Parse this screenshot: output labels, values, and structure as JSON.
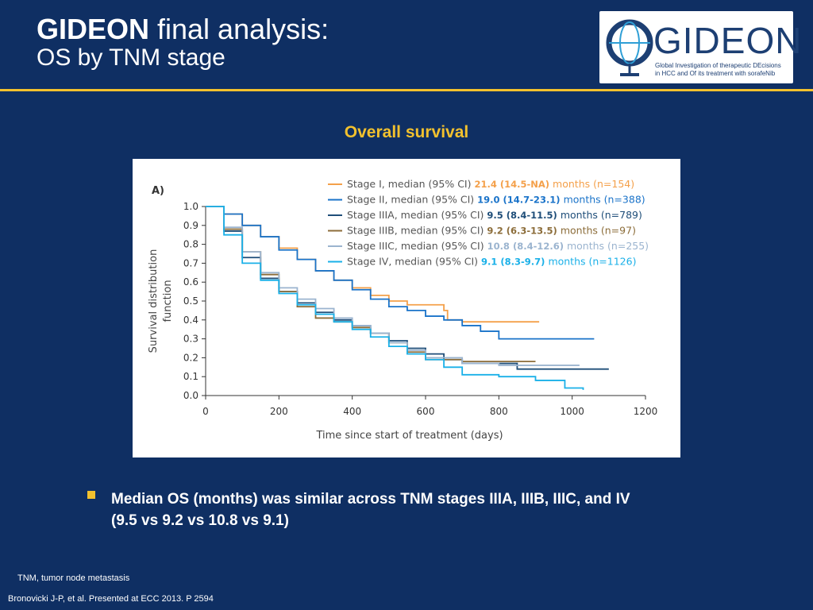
{
  "header": {
    "title_bold": "GIDEON",
    "title_rest": " final analysis:",
    "subtitle": "OS by TNM stage"
  },
  "logo": {
    "icon": "globe-icon",
    "word": "GIDEON",
    "tagline_line1": "Global Investigation of therapeutic DEcisions",
    "tagline_line2": "in HCC and Of its treatment with sorafeNib"
  },
  "section_title": "Overall survival",
  "bullet": {
    "icon": "square-bullet-icon",
    "line1": "Median OS (months) was similar across TNM stages IIIA, IIIB, IIIC, and IV",
    "line2": "(9.5 vs 9.2 vs 10.8 vs 9.1)"
  },
  "footnote": "TNM, tumor node metastasis",
  "citation": "Bronovicki J-P, et al. Presented at ECC 2013. P 2594",
  "colors": {
    "background": "#0f2f63",
    "accent": "#f2c12e"
  },
  "chart_data": {
    "type": "line",
    "panel_label": "A)",
    "xlabel": "Time since start of treatment (days)",
    "ylabel_line1": "Survival distribution",
    "ylabel_line2": "function",
    "xlim": [
      0,
      1200
    ],
    "ylim": [
      0,
      1.0
    ],
    "xticks": [
      "0",
      "200",
      "400",
      "600",
      "800",
      "1000",
      "1200"
    ],
    "yticks": [
      "0.0",
      "0.1",
      "0.2",
      "0.3",
      "0.4",
      "0.5",
      "0.6",
      "0.7",
      "0.8",
      "0.9",
      "1.0"
    ],
    "legend_position": "top-right",
    "series": [
      {
        "name": "Stage I",
        "legend_prefix": "Stage I, median (95% CI)",
        "median": "21.4 (14.5-NA)",
        "months_label": "months",
        "n": "154",
        "color": "#f4a04a",
        "points": [
          [
            0,
            1.0
          ],
          [
            50,
            0.96
          ],
          [
            100,
            0.9
          ],
          [
            150,
            0.84
          ],
          [
            200,
            0.78
          ],
          [
            250,
            0.72
          ],
          [
            300,
            0.66
          ],
          [
            350,
            0.61
          ],
          [
            400,
            0.57
          ],
          [
            450,
            0.53
          ],
          [
            500,
            0.5
          ],
          [
            550,
            0.48
          ],
          [
            600,
            0.48
          ],
          [
            650,
            0.45
          ],
          [
            660,
            0.4
          ],
          [
            700,
            0.39
          ],
          [
            800,
            0.39
          ],
          [
            910,
            0.39
          ]
        ]
      },
      {
        "name": "Stage II",
        "legend_prefix": "Stage II, median (95% CI)",
        "median": "19.0 (14.7-23.1)",
        "months_label": "months",
        "n": "388",
        "color": "#1a73c9",
        "points": [
          [
            0,
            1.0
          ],
          [
            50,
            0.96
          ],
          [
            100,
            0.9
          ],
          [
            150,
            0.84
          ],
          [
            200,
            0.77
          ],
          [
            250,
            0.72
          ],
          [
            300,
            0.66
          ],
          [
            350,
            0.61
          ],
          [
            400,
            0.56
          ],
          [
            450,
            0.51
          ],
          [
            500,
            0.47
          ],
          [
            550,
            0.45
          ],
          [
            600,
            0.42
          ],
          [
            650,
            0.4
          ],
          [
            700,
            0.37
          ],
          [
            750,
            0.34
          ],
          [
            800,
            0.3
          ],
          [
            900,
            0.3
          ],
          [
            1060,
            0.3
          ]
        ]
      },
      {
        "name": "Stage IIIA",
        "legend_prefix": "Stage IIIA, median (95% CI)",
        "median": "9.5 (8.4-11.5)",
        "months_label": "months",
        "n": "789",
        "color": "#1f4e79",
        "points": [
          [
            0,
            1.0
          ],
          [
            50,
            0.87
          ],
          [
            100,
            0.73
          ],
          [
            150,
            0.62
          ],
          [
            200,
            0.55
          ],
          [
            250,
            0.49
          ],
          [
            300,
            0.44
          ],
          [
            350,
            0.4
          ],
          [
            400,
            0.37
          ],
          [
            450,
            0.33
          ],
          [
            500,
            0.29
          ],
          [
            550,
            0.25
          ],
          [
            600,
            0.22
          ],
          [
            650,
            0.19
          ],
          [
            700,
            0.17
          ],
          [
            800,
            0.17
          ],
          [
            850,
            0.14
          ],
          [
            1000,
            0.14
          ],
          [
            1100,
            0.14
          ]
        ]
      },
      {
        "name": "Stage IIIB",
        "legend_prefix": "Stage IIIB, median (95% CI)",
        "median": "9.2 (6.3-13.5)",
        "months_label": "months",
        "n": "97",
        "color": "#8c6d3a",
        "points": [
          [
            0,
            1.0
          ],
          [
            50,
            0.88
          ],
          [
            100,
            0.76
          ],
          [
            150,
            0.64
          ],
          [
            200,
            0.55
          ],
          [
            250,
            0.47
          ],
          [
            300,
            0.41
          ],
          [
            350,
            0.39
          ],
          [
            400,
            0.36
          ],
          [
            450,
            0.33
          ],
          [
            500,
            0.28
          ],
          [
            550,
            0.23
          ],
          [
            600,
            0.19
          ],
          [
            700,
            0.18
          ],
          [
            800,
            0.18
          ],
          [
            900,
            0.18
          ]
        ]
      },
      {
        "name": "Stage IIIC",
        "legend_prefix": "Stage IIIC, median (95% CI)",
        "median": "10.8 (8.4-12.6)",
        "months_label": "months",
        "n": "255",
        "color": "#9bb4cf",
        "points": [
          [
            0,
            1.0
          ],
          [
            50,
            0.89
          ],
          [
            100,
            0.76
          ],
          [
            150,
            0.65
          ],
          [
            200,
            0.57
          ],
          [
            250,
            0.51
          ],
          [
            300,
            0.46
          ],
          [
            350,
            0.41
          ],
          [
            400,
            0.37
          ],
          [
            450,
            0.33
          ],
          [
            500,
            0.28
          ],
          [
            550,
            0.24
          ],
          [
            600,
            0.2
          ],
          [
            700,
            0.17
          ],
          [
            800,
            0.16
          ],
          [
            900,
            0.16
          ],
          [
            1020,
            0.16
          ]
        ]
      },
      {
        "name": "Stage IV",
        "legend_prefix": "Stage IV, median (95% CI)",
        "median": "9.1 (8.3-9.7)",
        "months_label": "months",
        "n": "1126",
        "color": "#1ab0e8",
        "points": [
          [
            0,
            1.0
          ],
          [
            50,
            0.85
          ],
          [
            100,
            0.7
          ],
          [
            150,
            0.61
          ],
          [
            200,
            0.54
          ],
          [
            250,
            0.48
          ],
          [
            300,
            0.43
          ],
          [
            350,
            0.39
          ],
          [
            400,
            0.35
          ],
          [
            450,
            0.31
          ],
          [
            500,
            0.26
          ],
          [
            550,
            0.22
          ],
          [
            600,
            0.19
          ],
          [
            650,
            0.15
          ],
          [
            700,
            0.11
          ],
          [
            800,
            0.1
          ],
          [
            900,
            0.08
          ],
          [
            980,
            0.04
          ],
          [
            1030,
            0.03
          ]
        ]
      }
    ]
  }
}
